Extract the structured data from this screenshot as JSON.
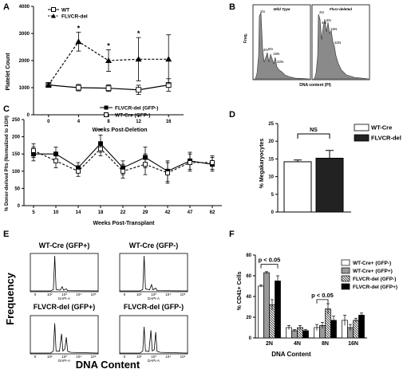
{
  "chart_data": [
    {
      "id": "A",
      "type": "line",
      "panel_label": "A",
      "ylabel": "Platelet Count",
      "xlabel": "Weeks Post-Deletion",
      "x": [
        0,
        4,
        8,
        12,
        16
      ],
      "xticks": [
        "0",
        "4",
        "8",
        "12",
        "16"
      ],
      "series": [
        {
          "name": "WT",
          "values": [
            1100,
            1000,
            980,
            920,
            1100
          ],
          "err": [
            70,
            120,
            120,
            170,
            230
          ],
          "marker": "square-open",
          "style": "solid"
        },
        {
          "name": "FLVCR-del",
          "values": [
            1100,
            2700,
            2000,
            2050,
            2050
          ],
          "err": [
            70,
            350,
            400,
            800,
            900
          ],
          "marker": "triangle",
          "style": "dashed"
        }
      ],
      "sig": [
        "*",
        "*",
        "*"
      ],
      "ylim": [
        0,
        4000
      ],
      "yticks": [
        "0",
        "1000",
        "2000",
        "3000",
        "4000"
      ]
    },
    {
      "id": "B",
      "type": "histogram",
      "panel_label": "B",
      "ylabel": "Freq.",
      "xlabel": "DNA content (PI)",
      "subpanels": [
        "Wild Type",
        "Flvcr-deleted"
      ],
      "peak_labels": [
        "2N",
        "4N",
        "8N",
        "16N",
        "32N"
      ]
    },
    {
      "id": "C",
      "type": "line",
      "panel_label": "C",
      "ylabel": "% Donor-derived Plts (Normalized to 1GH)",
      "xlabel": "Weeks Post-Transplant",
      "categories": [
        "5",
        "10",
        "14",
        "18",
        "22",
        "29",
        "42",
        "47",
        "62"
      ],
      "series": [
        {
          "name": "FLVCR-del (GFP-)",
          "values": [
            150,
            150,
            110,
            180,
            110,
            140,
            100,
            130,
            120
          ],
          "err": [
            20,
            20,
            15,
            25,
            20,
            30,
            30,
            25,
            20
          ],
          "marker": "square-filled",
          "style": "solid"
        },
        {
          "name": "WT-Cre (GFP-)",
          "values": [
            160,
            130,
            100,
            165,
            100,
            120,
            95,
            125,
            125
          ],
          "err": [
            20,
            20,
            15,
            20,
            20,
            30,
            30,
            25,
            20
          ],
          "marker": "square-open",
          "style": "dashed"
        }
      ],
      "sig_index": 3,
      "sig": "*",
      "ylim": [
        0,
        250
      ],
      "yticks": [
        "0",
        "50",
        "100",
        "150",
        "200",
        "250"
      ]
    },
    {
      "id": "D",
      "type": "bar",
      "panel_label": "D",
      "ylabel": "% Megakaryocytes",
      "categories": [
        "WT-Cre",
        "FLVCR-del"
      ],
      "values": [
        14.2,
        15.2
      ],
      "err": [
        0.5,
        2.2
      ],
      "colors": [
        "#ffffff",
        "#222222"
      ],
      "ylim": [
        0,
        25
      ],
      "yticks": [
        "0",
        "5",
        "10",
        "15",
        "20",
        "25"
      ],
      "sig": "NS"
    },
    {
      "id": "E",
      "type": "histogram",
      "panel_label": "E",
      "ylabel": "Frequency",
      "xlabel": "DNA Content",
      "axis_label": "DAPI-A",
      "xticks": [
        "0",
        "10²",
        "10³",
        "10⁴",
        "10⁵"
      ],
      "subpanels": [
        "WT-Cre (GFP+)",
        "WT-Cre (GFP-)",
        "FLVCR-del (GFP+)",
        "FLVCR-del (GFP-)"
      ]
    },
    {
      "id": "F",
      "type": "bar",
      "panel_label": "F",
      "ylabel": "% CD41+ Cells",
      "xlabel": "DNA Content",
      "categories": [
        "2N",
        "4N",
        "8N",
        "16N"
      ],
      "series": [
        {
          "name": "WT-Cre+ (GFP-)",
          "values": [
            50,
            10,
            10,
            17
          ],
          "err": [
            1,
            2,
            3,
            5
          ],
          "fill": "white"
        },
        {
          "name": "WT-Cre+ (GFP+)",
          "values": [
            63,
            7,
            12,
            10
          ],
          "err": [
            1,
            1,
            3,
            3
          ],
          "fill": "gray"
        },
        {
          "name": "FLVCR-del (GFP-)",
          "values": [
            32,
            10,
            28,
            17
          ],
          "err": [
            5,
            2,
            5,
            2
          ],
          "fill": "hatch"
        },
        {
          "name": "FLVCR-del (GFP+)",
          "values": [
            55,
            7,
            17,
            22
          ],
          "err": [
            5,
            1,
            4,
            2
          ],
          "fill": "black"
        }
      ],
      "ylim": [
        0,
        80
      ],
      "yticks": [
        "0",
        "20",
        "40",
        "60",
        "80"
      ],
      "sig_labels": [
        "p < 0.05",
        "p < 0.05"
      ]
    }
  ]
}
